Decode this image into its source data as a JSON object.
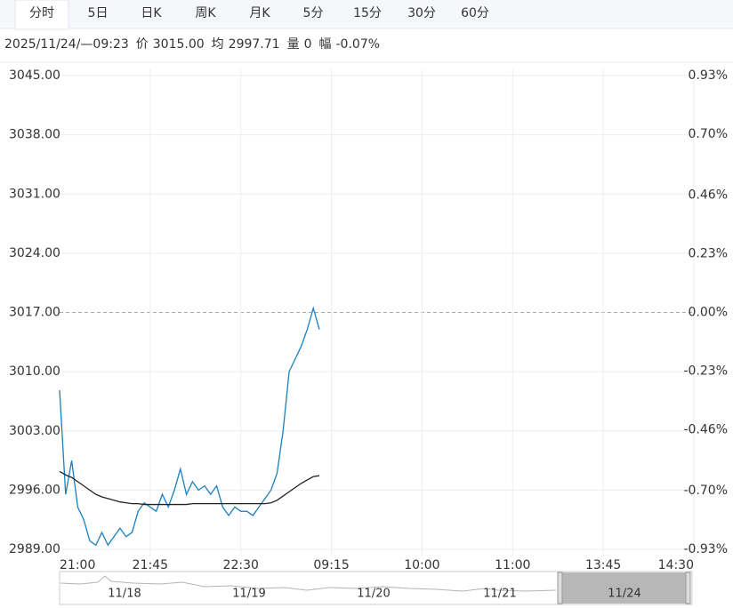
{
  "tabs": [
    "分时",
    "5日",
    "日K",
    "周K",
    "月K",
    "5分",
    "15分",
    "30分",
    "60分"
  ],
  "active_tab": 0,
  "info": {
    "datetime": "2025/11/24/—09:23",
    "price_label": "价",
    "price": "3015.00",
    "avg_label": "均",
    "avg": "2997.71",
    "volume_label": "量",
    "volume": "0",
    "change_label": "幅",
    "change": "-0.07%"
  },
  "chart_data": {
    "type": "line",
    "categories": [
      "21:00",
      null,
      null,
      null,
      null,
      null,
      null,
      null,
      null,
      null,
      null,
      null,
      null,
      null,
      null,
      "21:45",
      null,
      null,
      null,
      null,
      null,
      null,
      null,
      null,
      null,
      null,
      null,
      null,
      null,
      null,
      "22:30",
      null,
      null,
      null,
      null,
      null,
      null,
      null,
      null,
      null,
      null,
      null,
      null,
      null,
      null,
      "09:15",
      null,
      null,
      null,
      null,
      null,
      null,
      null,
      null,
      null,
      null,
      null,
      null,
      null,
      null,
      "10:00",
      null,
      null,
      null,
      null,
      null,
      null,
      null,
      null,
      null,
      null,
      null,
      null,
      null,
      null,
      "11:00",
      null,
      null,
      null,
      null,
      null,
      null,
      null,
      null,
      null,
      null,
      null,
      null,
      null,
      null,
      "13:45",
      null,
      null,
      null,
      null,
      null,
      null,
      null,
      null,
      null,
      null,
      null,
      null,
      null,
      null,
      "14:30"
    ],
    "series": [
      {
        "color": "#1a7fc1",
        "values": [
          3007.8,
          2995.5,
          2999.5,
          2994,
          2992.5,
          2990,
          2989.5,
          2991,
          2989.5,
          2990.5,
          2991.5,
          2990.5,
          2991,
          2993.5,
          2994.5,
          2994,
          2993.5,
          2995.5,
          2994,
          2996,
          2998.5,
          2995.5,
          2997,
          2996,
          2996.5,
          2995.5,
          2996.5,
          2994,
          2993,
          2994,
          2993.5,
          2993.5,
          2993,
          2994,
          2995,
          2996,
          2998,
          3003,
          3010,
          3011.5,
          3013,
          3015,
          3017.5,
          3015,
          null,
          null,
          null,
          null,
          null,
          null,
          null,
          null,
          null,
          null,
          null,
          null,
          null,
          null,
          null,
          null,
          null,
          null,
          null,
          null,
          null,
          null,
          null,
          null,
          null,
          null,
          null,
          null,
          null,
          null,
          null,
          null,
          null,
          null,
          null,
          null,
          null,
          null,
          null,
          null,
          null,
          null,
          null,
          null,
          null,
          null,
          null,
          null,
          null,
          null,
          null,
          null,
          null,
          null,
          null,
          null,
          null,
          null,
          null,
          null,
          null,
          null
        ]
      },
      {
        "color": "#222222",
        "values": [
          2998.2,
          2997.8,
          2997.5,
          2997,
          2996.5,
          2996,
          2995.5,
          2995.2,
          2995,
          2994.8,
          2994.6,
          2994.5,
          2994.4,
          2994.4,
          2994.3,
          2994.3,
          2994.3,
          2994.3,
          2994.3,
          2994.3,
          2994.3,
          2994.3,
          2994.4,
          2994.4,
          2994.4,
          2994.4,
          2994.4,
          2994.4,
          2994.4,
          2994.4,
          2994.4,
          2994.4,
          2994.4,
          2994.4,
          2994.4,
          2994.5,
          2994.8,
          2995.3,
          2995.8,
          2996.3,
          2996.8,
          2997.2,
          2997.6,
          2997.7,
          null,
          null,
          null,
          null,
          null,
          null,
          null,
          null,
          null,
          null,
          null,
          null,
          null,
          null,
          null,
          null,
          null,
          null,
          null,
          null,
          null,
          null,
          null,
          null,
          null,
          null,
          null,
          null,
          null,
          null,
          null,
          null,
          null,
          null,
          null,
          null,
          null,
          null,
          null,
          null,
          null,
          null,
          null,
          null,
          null,
          null,
          null,
          null,
          null,
          null,
          null,
          null,
          null,
          null,
          null,
          null,
          null,
          null,
          null,
          null,
          null,
          null
        ]
      }
    ],
    "ylim": [
      2989,
      3045
    ],
    "yticks": [
      {
        "value": 3045,
        "label": "3045.00"
      },
      {
        "value": 3038,
        "label": "3038.00"
      },
      {
        "value": 3031,
        "label": "3031.00"
      },
      {
        "value": 3024,
        "label": "3024.00"
      },
      {
        "value": 3017,
        "label": "3017.00"
      },
      {
        "value": 3010,
        "label": "3010.00"
      },
      {
        "value": 3003,
        "label": "3003.00"
      },
      {
        "value": 2996,
        "label": "2996.00"
      },
      {
        "value": 2989,
        "label": "2989.00"
      }
    ],
    "y2lim": [
      -0.93,
      0.93
    ],
    "y2ticks": [
      {
        "value": 0.93,
        "label": "0.93%"
      },
      {
        "value": 0.7,
        "label": "0.70%"
      },
      {
        "value": 0.46,
        "label": "0.46%"
      },
      {
        "value": 0.23,
        "label": "0.23%"
      },
      {
        "value": 0,
        "label": "0.00%"
      },
      {
        "value": -0.23,
        "label": "-0.23%"
      },
      {
        "value": -0.46,
        "label": "-0.46%"
      },
      {
        "value": -0.7,
        "label": "-0.70%"
      },
      {
        "value": -0.93,
        "label": "-0.93%"
      }
    ],
    "baseline": 3017,
    "up_color": "#e02020",
    "down_color": "#1a9a1a",
    "grid": true,
    "navigator": {
      "labels": [
        "11/18",
        "11/19",
        "11/20",
        "11/21",
        "11/24"
      ]
    }
  }
}
